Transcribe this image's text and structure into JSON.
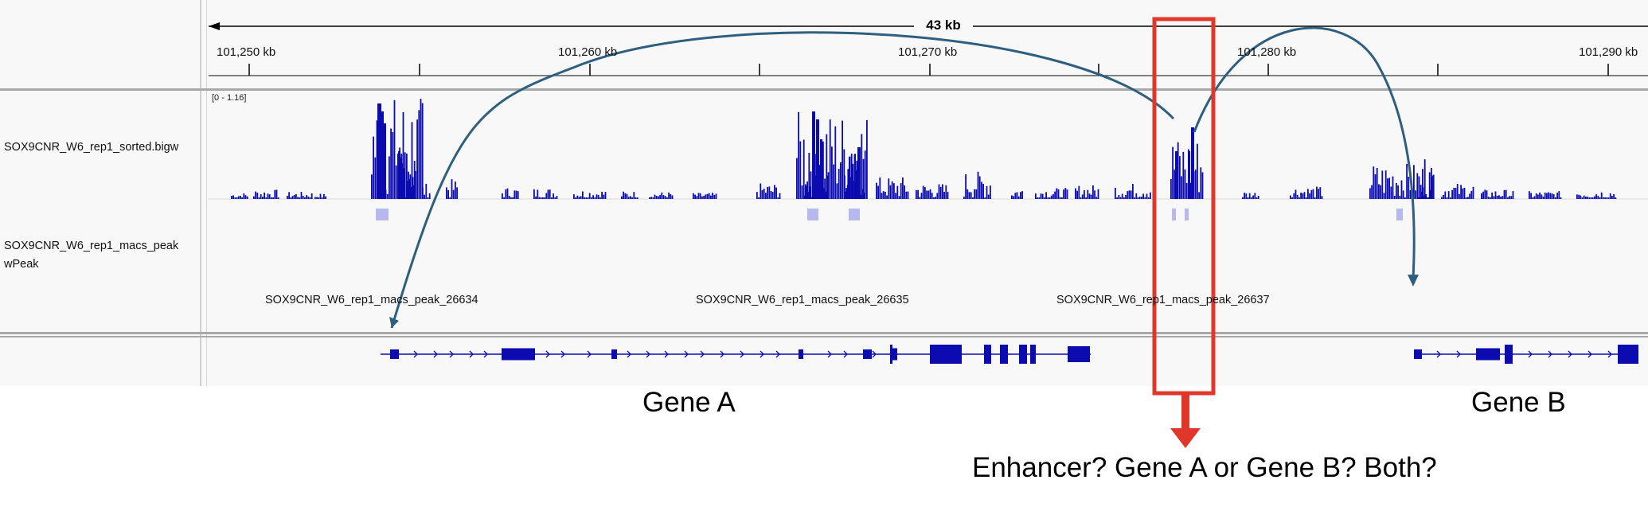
{
  "ruler": {
    "span_label": "43 kb",
    "ticks": [
      "101,250 kb",
      "101,260 kb",
      "101,270 kb",
      "101,280 kb",
      "101,290 kb"
    ]
  },
  "tracks": {
    "bigwig": {
      "name": "SOX9CNR_W6_rep1_sorted.bigw",
      "data_range": "[0 - 1.16]"
    },
    "peaks": {
      "name_line1": "SOX9CNR_W6_rep1_macs_peak",
      "name_line2": "wPeak",
      "peak_labels": [
        "SOX9CNR_W6_rep1_macs_peak_26634",
        "SOX9CNR_W6_rep1_macs_peak_26635",
        "SOX9CNR_W6_rep1_macs_peak_26637"
      ]
    }
  },
  "annotations": {
    "gene_a": "Gene A",
    "gene_b": "Gene B",
    "question": "Enhancer? Gene A or Gene B? Both?"
  },
  "colors": {
    "signal": "#0b0bb0",
    "peak_fill": "#b8b8ee",
    "arc": "#2f5f7e",
    "highlight": "#e1372b"
  },
  "icons": [
    "left-arrowhead-icon",
    "right-arrowhead-icon",
    "down-arrow-icon"
  ]
}
